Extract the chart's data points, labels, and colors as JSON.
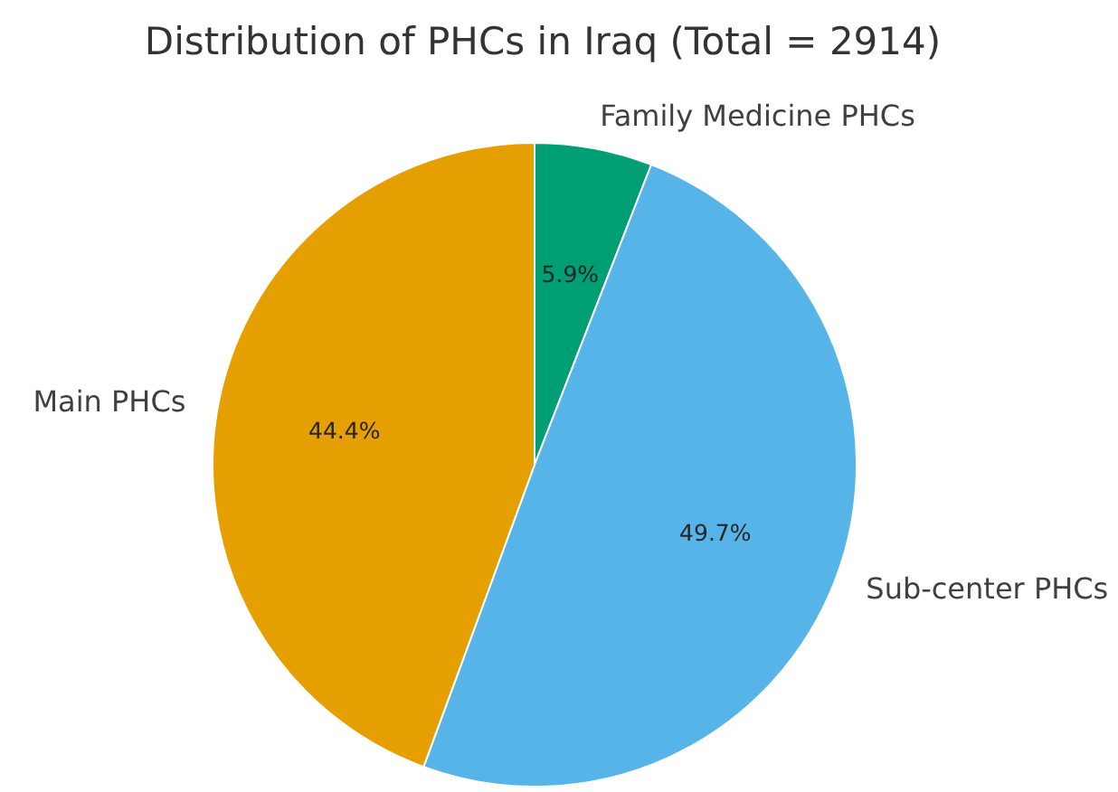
{
  "chart_data": {
    "type": "pie",
    "title": "Distribution of PHCs in Iraq (Total = 2914)",
    "categories": [
      "Family Medicine PHCs",
      "Sub-center PHCs",
      "Main PHCs"
    ],
    "values": [
      5.9,
      49.7,
      44.4
    ],
    "colors": [
      "#009e73",
      "#56b4e9",
      "#e69f00"
    ],
    "value_labels": [
      "5.9%",
      "49.7%",
      "44.4%"
    ]
  }
}
